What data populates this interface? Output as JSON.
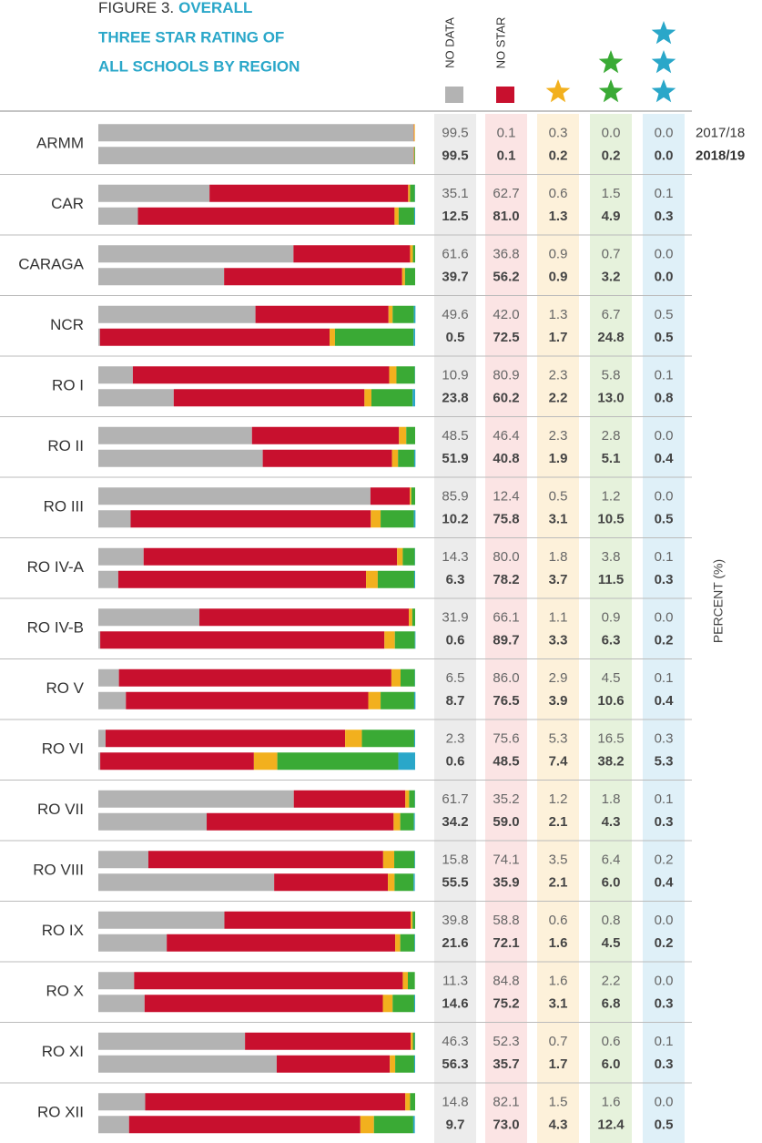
{
  "chart_data": {
    "type": "stacked_bar",
    "title_label": "FIGURE 3.",
    "title": [
      "OVERALL",
      "THREE STAR RATING OF",
      "ALL SCHOOLS BY REGION"
    ],
    "axis_label": "PERCENT (%)",
    "years": [
      "2017/18",
      "2018/19"
    ],
    "xlim": [
      0,
      100
    ],
    "categories": [
      "ARMM",
      "CAR",
      "CARAGA",
      "NCR",
      "RO I",
      "RO II",
      "RO III",
      "RO IV-A",
      "RO IV-B",
      "RO V",
      "RO VI",
      "RO VII",
      "RO VIII",
      "RO IX",
      "RO X",
      "RO XI",
      "RO XII"
    ],
    "series": [
      {
        "name": "NO DATA",
        "color": "#b3b3b3",
        "band": "#ececec",
        "values": [
          [
            99.5,
            99.5
          ],
          [
            35.1,
            12.5
          ],
          [
            61.6,
            39.7
          ],
          [
            49.6,
            0.5
          ],
          [
            10.9,
            23.8
          ],
          [
            48.5,
            51.9
          ],
          [
            85.9,
            10.2
          ],
          [
            14.3,
            6.3
          ],
          [
            31.9,
            0.6
          ],
          [
            6.5,
            8.7
          ],
          [
            2.3,
            0.6
          ],
          [
            61.7,
            34.2
          ],
          [
            15.8,
            55.5
          ],
          [
            39.8,
            21.6
          ],
          [
            11.3,
            14.6
          ],
          [
            46.3,
            56.3
          ],
          [
            14.8,
            9.7
          ]
        ],
        "value_labels": [
          [
            "99.5",
            "99.5"
          ],
          [
            "35.1",
            "12.5"
          ],
          [
            "61.6",
            "39.7"
          ],
          [
            "49.6",
            "0.5"
          ],
          [
            "10.9",
            "23.8"
          ],
          [
            "48.5",
            "51.9"
          ],
          [
            "85.9",
            "10.2"
          ],
          [
            "14.3",
            "6.3"
          ],
          [
            "31.9",
            "0.6"
          ],
          [
            "6.5",
            "8.7"
          ],
          [
            "2.3",
            "0.6"
          ],
          [
            "61.7",
            "34.2"
          ],
          [
            "15.8",
            "55.5"
          ],
          [
            "39.8",
            "21.6"
          ],
          [
            "11.3",
            "14.6"
          ],
          [
            "46.3",
            "56.3"
          ],
          [
            "14.8",
            "9.7"
          ]
        ]
      },
      {
        "name": "NO STAR",
        "color": "#c8102e",
        "band": "#fbe4e4",
        "values": [
          [
            0.1,
            0.1
          ],
          [
            62.7,
            81.0
          ],
          [
            36.8,
            56.2
          ],
          [
            42.0,
            72.5
          ],
          [
            80.9,
            60.2
          ],
          [
            46.4,
            40.8
          ],
          [
            12.4,
            75.8
          ],
          [
            80.0,
            78.2
          ],
          [
            66.1,
            89.7
          ],
          [
            86.0,
            76.5
          ],
          [
            75.6,
            48.5
          ],
          [
            35.2,
            59.0
          ],
          [
            74.1,
            35.9
          ],
          [
            58.8,
            72.1
          ],
          [
            84.8,
            75.2
          ],
          [
            52.3,
            35.7
          ],
          [
            82.1,
            73.0
          ]
        ],
        "value_labels": [
          [
            "0.1",
            "0.1"
          ],
          [
            "62.7",
            "81.0"
          ],
          [
            "36.8",
            "56.2"
          ],
          [
            "42.0",
            "72.5"
          ],
          [
            "80.9",
            "60.2"
          ],
          [
            "46.4",
            "40.8"
          ],
          [
            "12.4",
            "75.8"
          ],
          [
            "80.0",
            "78.2"
          ],
          [
            "66.1",
            "89.7"
          ],
          [
            "86.0",
            "76.5"
          ],
          [
            "75.6",
            "48.5"
          ],
          [
            "35.2",
            "59.0"
          ],
          [
            "74.1",
            "35.9"
          ],
          [
            "58.8",
            "72.1"
          ],
          [
            "84.8",
            "75.2"
          ],
          [
            "52.3",
            "35.7"
          ],
          [
            "82.1",
            "73.0"
          ]
        ]
      },
      {
        "color": "#f2b01e",
        "band": "#fdf1da",
        "values": [
          [
            0.3,
            0.2
          ],
          [
            0.6,
            1.3
          ],
          [
            0.9,
            0.9
          ],
          [
            1.3,
            1.7
          ],
          [
            2.3,
            2.2
          ],
          [
            2.3,
            1.9
          ],
          [
            0.5,
            3.1
          ],
          [
            1.8,
            3.7
          ],
          [
            1.1,
            3.3
          ],
          [
            2.9,
            3.9
          ],
          [
            5.3,
            7.4
          ],
          [
            1.2,
            2.1
          ],
          [
            3.5,
            2.1
          ],
          [
            0.6,
            1.6
          ],
          [
            1.6,
            3.1
          ],
          [
            0.7,
            1.7
          ],
          [
            1.5,
            4.3
          ]
        ],
        "value_labels": [
          [
            "0.3",
            "0.2"
          ],
          [
            "0.6",
            "1.3"
          ],
          [
            "0.9",
            "0.9"
          ],
          [
            "1.3",
            "1.7"
          ],
          [
            "2.3",
            "2.2"
          ],
          [
            "2.3",
            "1.9"
          ],
          [
            "0.5",
            "3.1"
          ],
          [
            "1.8",
            "3.7"
          ],
          [
            "1.1",
            "3.3"
          ],
          [
            "2.9",
            "3.9"
          ],
          [
            "5.3",
            "7.4"
          ],
          [
            "1.2",
            "2.1"
          ],
          [
            "3.5",
            "2.1"
          ],
          [
            "0.6",
            "1.6"
          ],
          [
            "1.6",
            "3.1"
          ],
          [
            "0.7",
            "1.7"
          ],
          [
            "1.5",
            "4.3"
          ]
        ]
      },
      {
        "color": "#3aaa35",
        "band": "#e6f2dc",
        "values": [
          [
            0.0,
            0.2
          ],
          [
            1.5,
            4.9
          ],
          [
            0.7,
            3.2
          ],
          [
            6.7,
            24.8
          ],
          [
            5.8,
            13.0
          ],
          [
            2.8,
            5.1
          ],
          [
            1.2,
            10.5
          ],
          [
            3.8,
            11.5
          ],
          [
            0.9,
            6.3
          ],
          [
            4.5,
            10.6
          ],
          [
            16.5,
            38.2
          ],
          [
            1.8,
            4.3
          ],
          [
            6.4,
            6.0
          ],
          [
            0.8,
            4.5
          ],
          [
            2.2,
            6.8
          ],
          [
            0.6,
            6.0
          ],
          [
            1.6,
            12.4
          ]
        ],
        "value_labels": [
          [
            "0.0",
            "0.2"
          ],
          [
            "1.5",
            "4.9"
          ],
          [
            "0.7",
            "3.2"
          ],
          [
            "6.7",
            "24.8"
          ],
          [
            "5.8",
            "13.0"
          ],
          [
            "2.8",
            "5.1"
          ],
          [
            "1.2",
            "10.5"
          ],
          [
            "3.8",
            "11.5"
          ],
          [
            "0.9",
            "6.3"
          ],
          [
            "4.5",
            "10.6"
          ],
          [
            "16.5",
            "38.2"
          ],
          [
            "1.8",
            "4.3"
          ],
          [
            "6.4",
            "6.0"
          ],
          [
            "0.8",
            "4.5"
          ],
          [
            "2.2",
            "6.8"
          ],
          [
            "0.6",
            "6.0"
          ],
          [
            "1.6",
            "12.4"
          ]
        ]
      },
      {
        "color": "#2aa7c9",
        "band": "#dff0f8",
        "values": [
          [
            0.0,
            0.0
          ],
          [
            0.1,
            0.3
          ],
          [
            0.0,
            0.0
          ],
          [
            0.5,
            0.5
          ],
          [
            0.1,
            0.8
          ],
          [
            0.0,
            0.4
          ],
          [
            0.0,
            0.5
          ],
          [
            0.1,
            0.3
          ],
          [
            0.0,
            0.2
          ],
          [
            0.1,
            0.4
          ],
          [
            0.3,
            5.3
          ],
          [
            0.1,
            0.3
          ],
          [
            0.2,
            0.4
          ],
          [
            0.0,
            0.2
          ],
          [
            0.0,
            0.3
          ],
          [
            0.1,
            0.3
          ],
          [
            0.0,
            0.5
          ]
        ],
        "value_labels": [
          [
            "0.0",
            "0.0"
          ],
          [
            "0.1",
            "0.3"
          ],
          [
            "0.0",
            "0.0"
          ],
          [
            "0.5",
            "0.5"
          ],
          [
            "0.1",
            "0.8"
          ],
          [
            "0.0",
            "0.4"
          ],
          [
            "0.0",
            "0.5"
          ],
          [
            "0.1",
            "0.3"
          ],
          [
            "0.0",
            "0.2"
          ],
          [
            "0.1",
            "0.4"
          ],
          [
            "0.3",
            "5.3"
          ],
          [
            "0.1",
            "0.3"
          ],
          [
            "0.2",
            "0.4"
          ],
          [
            "0.0",
            "0.2"
          ],
          [
            "0.0",
            "0.3"
          ],
          [
            "0.1",
            "0.3"
          ],
          [
            "0.0",
            "0.5"
          ]
        ]
      }
    ]
  }
}
